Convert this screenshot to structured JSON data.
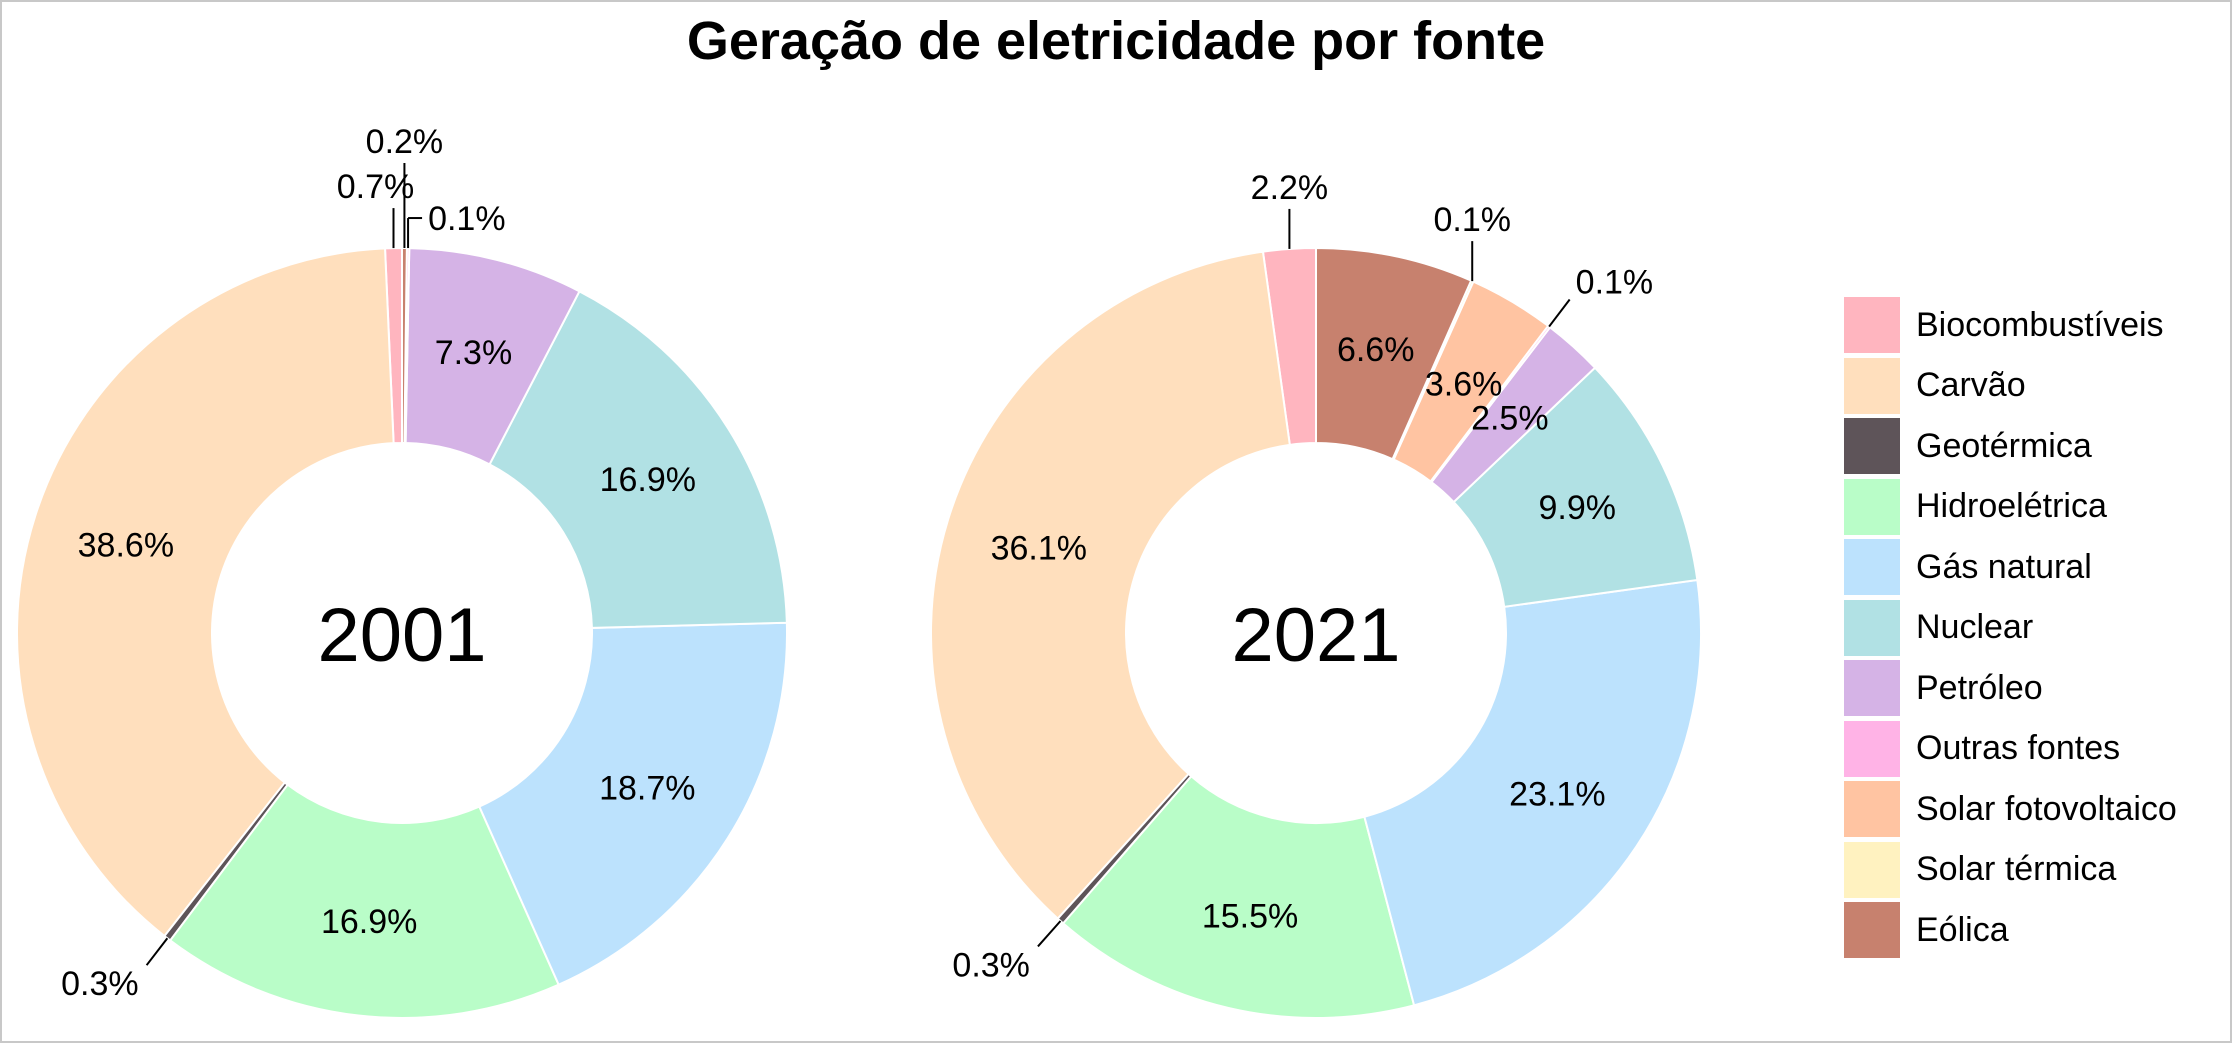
{
  "chart_data": {
    "type": "donut",
    "title": "Geração de eletricidade por fonte",
    "legend_position": "right",
    "categories": [
      "Biocombustíveis",
      "Carvão",
      "Geotérmica",
      "Hidroelétrica",
      "Gás natural",
      "Nuclear",
      "Petróleo",
      "Outras fontes",
      "Solar fotovoltaico",
      "Solar térmica",
      "Eólica"
    ],
    "colors": [
      "#ffb5bf",
      "#ffdfbd",
      "#5e5459",
      "#b9fdc8",
      "#bce2fd",
      "#b1e1e4",
      "#d5b3e6",
      "#ffb3e6",
      "#ffc4a2",
      "#fff2c0",
      "#c7816e"
    ],
    "series": [
      {
        "name": "2001",
        "values": [
          0.7,
          38.6,
          0.3,
          16.9,
          18.7,
          16.9,
          7.3,
          0.1,
          0.0,
          0.0,
          0.2
        ],
        "labels": [
          "0.7%",
          "38.6%",
          "0.3%",
          "16.9%",
          "18.7%",
          "16.9%",
          "7.3%",
          "0.1%",
          "",
          "",
          "0.2%"
        ]
      },
      {
        "name": "2021",
        "values": [
          2.2,
          36.1,
          0.3,
          15.5,
          23.1,
          9.9,
          2.5,
          0.1,
          3.6,
          0.1,
          6.6
        ],
        "labels": [
          "2.2%",
          "36.1%",
          "0.3%",
          "15.5%",
          "23.1%",
          "9.9%",
          "2.5%",
          "0.1%",
          "3.6%",
          "0.1%",
          "6.6%"
        ]
      }
    ]
  }
}
